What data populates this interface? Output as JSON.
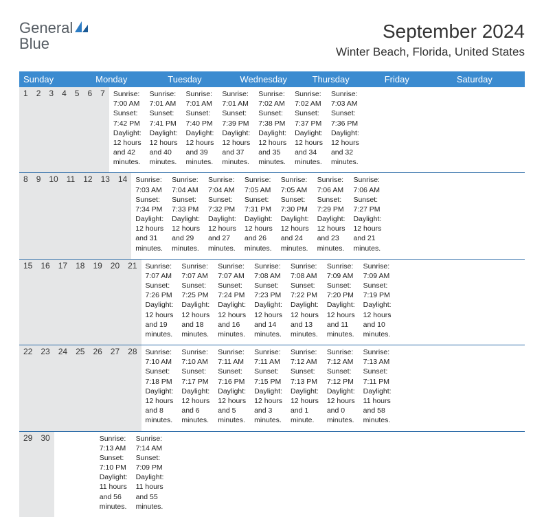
{
  "logo": {
    "text1": "General",
    "text2": "Blue"
  },
  "title": "September 2024",
  "location": "Winter Beach, Florida, United States",
  "colors": {
    "header_bg": "#3b8bd0",
    "header_text": "#ffffff",
    "daynum_bg": "#e5e6e7",
    "week_border": "#2d6ca8",
    "logo_gray": "#555c63",
    "logo_blue": "#2d7cc4"
  },
  "day_names": [
    "Sunday",
    "Monday",
    "Tuesday",
    "Wednesday",
    "Thursday",
    "Friday",
    "Saturday"
  ],
  "weeks": [
    {
      "nums": [
        "1",
        "2",
        "3",
        "4",
        "5",
        "6",
        "7"
      ],
      "cells": [
        {
          "sunrise": "Sunrise: 7:00 AM",
          "sunset": "Sunset: 7:42 PM",
          "day1": "Daylight: 12 hours",
          "day2": "and 42 minutes."
        },
        {
          "sunrise": "Sunrise: 7:01 AM",
          "sunset": "Sunset: 7:41 PM",
          "day1": "Daylight: 12 hours",
          "day2": "and 40 minutes."
        },
        {
          "sunrise": "Sunrise: 7:01 AM",
          "sunset": "Sunset: 7:40 PM",
          "day1": "Daylight: 12 hours",
          "day2": "and 39 minutes."
        },
        {
          "sunrise": "Sunrise: 7:01 AM",
          "sunset": "Sunset: 7:39 PM",
          "day1": "Daylight: 12 hours",
          "day2": "and 37 minutes."
        },
        {
          "sunrise": "Sunrise: 7:02 AM",
          "sunset": "Sunset: 7:38 PM",
          "day1": "Daylight: 12 hours",
          "day2": "and 35 minutes."
        },
        {
          "sunrise": "Sunrise: 7:02 AM",
          "sunset": "Sunset: 7:37 PM",
          "day1": "Daylight: 12 hours",
          "day2": "and 34 minutes."
        },
        {
          "sunrise": "Sunrise: 7:03 AM",
          "sunset": "Sunset: 7:36 PM",
          "day1": "Daylight: 12 hours",
          "day2": "and 32 minutes."
        }
      ]
    },
    {
      "nums": [
        "8",
        "9",
        "10",
        "11",
        "12",
        "13",
        "14"
      ],
      "cells": [
        {
          "sunrise": "Sunrise: 7:03 AM",
          "sunset": "Sunset: 7:34 PM",
          "day1": "Daylight: 12 hours",
          "day2": "and 31 minutes."
        },
        {
          "sunrise": "Sunrise: 7:04 AM",
          "sunset": "Sunset: 7:33 PM",
          "day1": "Daylight: 12 hours",
          "day2": "and 29 minutes."
        },
        {
          "sunrise": "Sunrise: 7:04 AM",
          "sunset": "Sunset: 7:32 PM",
          "day1": "Daylight: 12 hours",
          "day2": "and 27 minutes."
        },
        {
          "sunrise": "Sunrise: 7:05 AM",
          "sunset": "Sunset: 7:31 PM",
          "day1": "Daylight: 12 hours",
          "day2": "and 26 minutes."
        },
        {
          "sunrise": "Sunrise: 7:05 AM",
          "sunset": "Sunset: 7:30 PM",
          "day1": "Daylight: 12 hours",
          "day2": "and 24 minutes."
        },
        {
          "sunrise": "Sunrise: 7:06 AM",
          "sunset": "Sunset: 7:29 PM",
          "day1": "Daylight: 12 hours",
          "day2": "and 23 minutes."
        },
        {
          "sunrise": "Sunrise: 7:06 AM",
          "sunset": "Sunset: 7:27 PM",
          "day1": "Daylight: 12 hours",
          "day2": "and 21 minutes."
        }
      ]
    },
    {
      "nums": [
        "15",
        "16",
        "17",
        "18",
        "19",
        "20",
        "21"
      ],
      "cells": [
        {
          "sunrise": "Sunrise: 7:07 AM",
          "sunset": "Sunset: 7:26 PM",
          "day1": "Daylight: 12 hours",
          "day2": "and 19 minutes."
        },
        {
          "sunrise": "Sunrise: 7:07 AM",
          "sunset": "Sunset: 7:25 PM",
          "day1": "Daylight: 12 hours",
          "day2": "and 18 minutes."
        },
        {
          "sunrise": "Sunrise: 7:07 AM",
          "sunset": "Sunset: 7:24 PM",
          "day1": "Daylight: 12 hours",
          "day2": "and 16 minutes."
        },
        {
          "sunrise": "Sunrise: 7:08 AM",
          "sunset": "Sunset: 7:23 PM",
          "day1": "Daylight: 12 hours",
          "day2": "and 14 minutes."
        },
        {
          "sunrise": "Sunrise: 7:08 AM",
          "sunset": "Sunset: 7:22 PM",
          "day1": "Daylight: 12 hours",
          "day2": "and 13 minutes."
        },
        {
          "sunrise": "Sunrise: 7:09 AM",
          "sunset": "Sunset: 7:20 PM",
          "day1": "Daylight: 12 hours",
          "day2": "and 11 minutes."
        },
        {
          "sunrise": "Sunrise: 7:09 AM",
          "sunset": "Sunset: 7:19 PM",
          "day1": "Daylight: 12 hours",
          "day2": "and 10 minutes."
        }
      ]
    },
    {
      "nums": [
        "22",
        "23",
        "24",
        "25",
        "26",
        "27",
        "28"
      ],
      "cells": [
        {
          "sunrise": "Sunrise: 7:10 AM",
          "sunset": "Sunset: 7:18 PM",
          "day1": "Daylight: 12 hours",
          "day2": "and 8 minutes."
        },
        {
          "sunrise": "Sunrise: 7:10 AM",
          "sunset": "Sunset: 7:17 PM",
          "day1": "Daylight: 12 hours",
          "day2": "and 6 minutes."
        },
        {
          "sunrise": "Sunrise: 7:11 AM",
          "sunset": "Sunset: 7:16 PM",
          "day1": "Daylight: 12 hours",
          "day2": "and 5 minutes."
        },
        {
          "sunrise": "Sunrise: 7:11 AM",
          "sunset": "Sunset: 7:15 PM",
          "day1": "Daylight: 12 hours",
          "day2": "and 3 minutes."
        },
        {
          "sunrise": "Sunrise: 7:12 AM",
          "sunset": "Sunset: 7:13 PM",
          "day1": "Daylight: 12 hours",
          "day2": "and 1 minute."
        },
        {
          "sunrise": "Sunrise: 7:12 AM",
          "sunset": "Sunset: 7:12 PM",
          "day1": "Daylight: 12 hours",
          "day2": "and 0 minutes."
        },
        {
          "sunrise": "Sunrise: 7:13 AM",
          "sunset": "Sunset: 7:11 PM",
          "day1": "Daylight: 11 hours",
          "day2": "and 58 minutes."
        }
      ]
    },
    {
      "nums": [
        "29",
        "30",
        "",
        "",
        "",
        "",
        ""
      ],
      "cells": [
        {
          "sunrise": "Sunrise: 7:13 AM",
          "sunset": "Sunset: 7:10 PM",
          "day1": "Daylight: 11 hours",
          "day2": "and 56 minutes."
        },
        {
          "sunrise": "Sunrise: 7:14 AM",
          "sunset": "Sunset: 7:09 PM",
          "day1": "Daylight: 11 hours",
          "day2": "and 55 minutes."
        },
        null,
        null,
        null,
        null,
        null
      ]
    }
  ]
}
